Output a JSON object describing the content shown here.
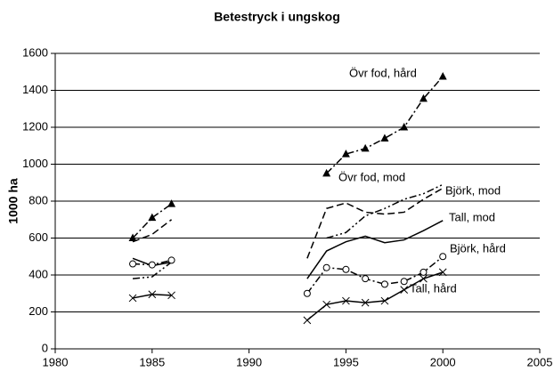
{
  "chart_data": {
    "type": "line",
    "title": "Betestryck i ungskog",
    "ylabel": "1000 ha",
    "x": [
      1984,
      1985,
      1986,
      1987,
      1988,
      1989,
      1990,
      1991,
      1992,
      1993,
      1994,
      1995,
      1996,
      1997,
      1998,
      1999,
      2000
    ],
    "xlim": [
      1980,
      2005
    ],
    "xticks": [
      1980,
      1985,
      1990,
      1995,
      2000,
      2005
    ],
    "ylim": [
      0,
      1600
    ],
    "yticks": [
      0,
      200,
      400,
      600,
      800,
      1000,
      1200,
      1400,
      1600
    ],
    "grid": true,
    "series": [
      {
        "name": "Övr fod, hård",
        "color": "#000000",
        "marker": "triangle",
        "dash": "dashdot",
        "values": [
          600,
          710,
          785,
          null,
          null,
          null,
          null,
          null,
          null,
          null,
          950,
          1055,
          1085,
          1140,
          1200,
          1355,
          1475
        ]
      },
      {
        "name": "Övr fod, mod",
        "color": "#000000",
        "marker": "none",
        "dash": "dashed",
        "values": [
          580,
          620,
          700,
          null,
          null,
          null,
          null,
          null,
          null,
          490,
          760,
          790,
          740,
          730,
          740,
          810,
          870
        ]
      },
      {
        "name": "Björk, mod",
        "color": "#000000",
        "marker": "none",
        "dash": "dashdotdot",
        "values": [
          380,
          390,
          470,
          null,
          null,
          null,
          null,
          null,
          null,
          null,
          600,
          630,
          720,
          760,
          810,
          840,
          890
        ]
      },
      {
        "name": "Tall, mod",
        "color": "#000000",
        "marker": "none",
        "dash": "solid",
        "values": [
          490,
          450,
          470,
          null,
          null,
          null,
          null,
          null,
          null,
          380,
          530,
          580,
          610,
          575,
          590,
          640,
          695
        ]
      },
      {
        "name": "Björk, hård",
        "color": "#000000",
        "marker": "circle",
        "dash": "dashdot",
        "values": [
          460,
          455,
          480,
          null,
          null,
          null,
          null,
          null,
          null,
          300,
          440,
          430,
          380,
          350,
          365,
          415,
          500
        ]
      },
      {
        "name": "Tall, hård",
        "color": "#000000",
        "marker": "x",
        "dash": "solid",
        "values": [
          275,
          295,
          290,
          null,
          null,
          null,
          null,
          null,
          null,
          155,
          240,
          260,
          250,
          260,
          320,
          380,
          415
        ]
      }
    ]
  }
}
